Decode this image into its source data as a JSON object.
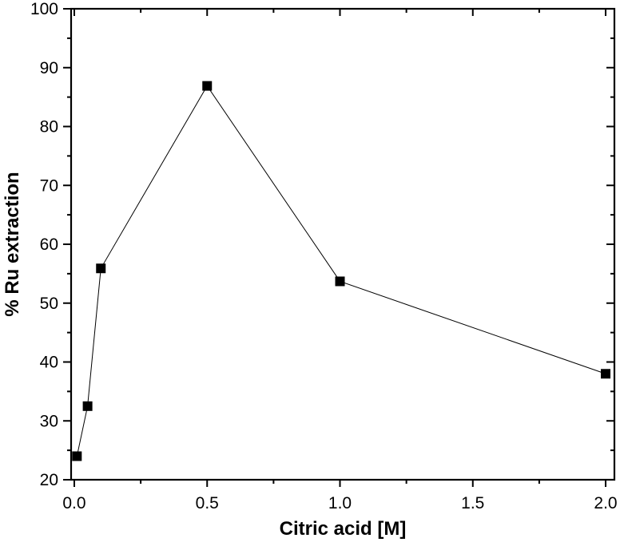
{
  "chart_data": {
    "type": "line",
    "title": "",
    "xlabel": "Citric acid [M]",
    "ylabel": "% Ru extraction",
    "xlim": [
      -0.012,
      2.033
    ],
    "ylim": [
      20,
      100
    ],
    "x_ticks": [
      0.0,
      0.5,
      1.0,
      1.5,
      2.0
    ],
    "x_tick_labels": [
      "0.0",
      "0.5",
      "1.0",
      "1.5",
      "2.0"
    ],
    "x_minor_ticks": [
      0.25,
      0.75,
      1.25,
      1.75
    ],
    "y_ticks": [
      20,
      30,
      40,
      50,
      60,
      70,
      80,
      90,
      100
    ],
    "y_tick_labels": [
      "20",
      "30",
      "40",
      "50",
      "60",
      "70",
      "80",
      "90",
      "100"
    ],
    "y_minor_ticks": [
      25,
      35,
      45,
      55,
      65,
      75,
      85,
      95
    ],
    "grid": false,
    "legend": null,
    "marker": "square",
    "series": [
      {
        "name": "% Ru extraction",
        "color": "#000000",
        "x": [
          0.01,
          0.05,
          0.1,
          0.5,
          1.0,
          2.0
        ],
        "y": [
          24.0,
          32.5,
          55.9,
          86.9,
          53.7,
          38.0
        ]
      }
    ]
  }
}
